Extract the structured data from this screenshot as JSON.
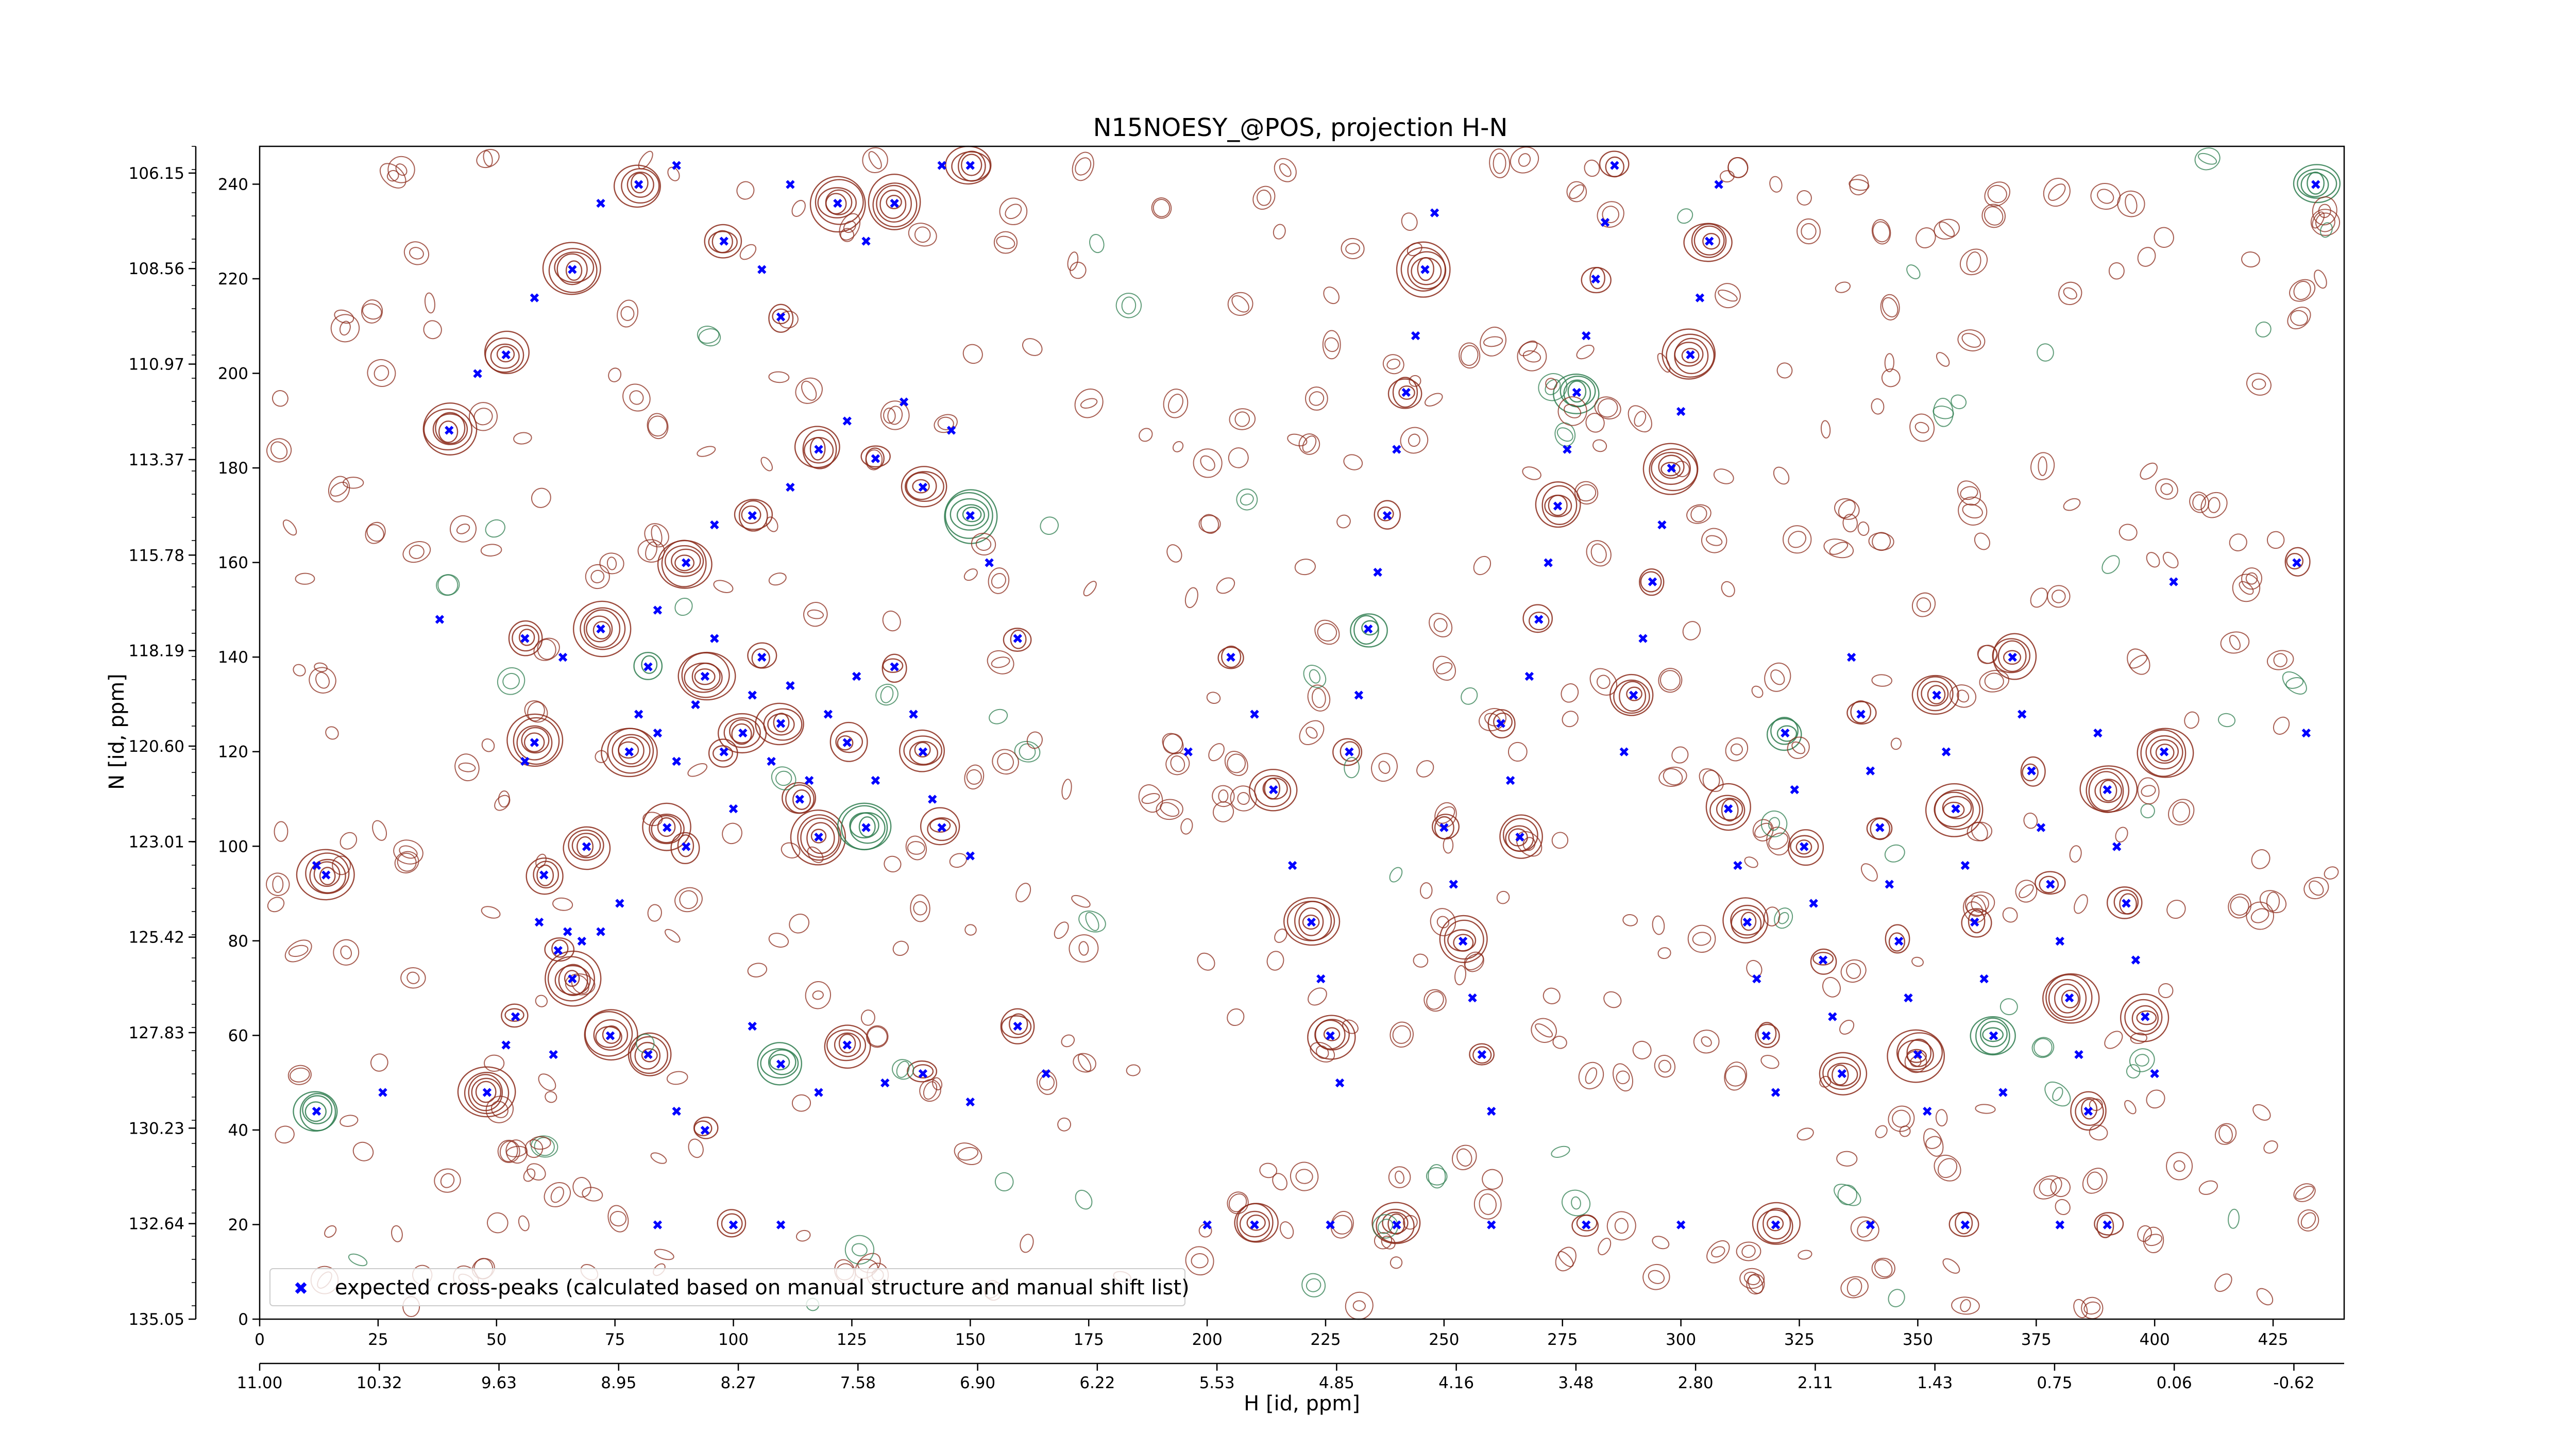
{
  "chart_data": {
    "type": "scatter",
    "title": "N15NOESY_@POS, projection H-N",
    "xlabel": "H [id, ppm]",
    "ylabel": "N [id, ppm]",
    "xlim": [
      0,
      440
    ],
    "ylim": [
      0,
      248
    ],
    "x_ticks": [
      "0",
      "25",
      "50",
      "75",
      "100",
      "125",
      "150",
      "175",
      "200",
      "225",
      "250",
      "275",
      "300",
      "325",
      "350",
      "375",
      "400",
      "425"
    ],
    "x_tick_values": [
      0,
      25,
      50,
      75,
      100,
      125,
      150,
      175,
      200,
      225,
      250,
      275,
      300,
      325,
      350,
      375,
      400,
      425
    ],
    "y_ticks": [
      "0",
      "20",
      "40",
      "60",
      "80",
      "100",
      "120",
      "140",
      "160",
      "180",
      "200",
      "220",
      "240"
    ],
    "y_tick_values": [
      0,
      20,
      40,
      60,
      80,
      100,
      120,
      140,
      160,
      180,
      200,
      220,
      240
    ],
    "x2_ticks": [
      "11.00",
      "10.32",
      "9.63",
      "8.95",
      "8.27",
      "7.58",
      "6.90",
      "6.22",
      "5.53",
      "4.85",
      "4.16",
      "3.48",
      "2.80",
      "2.11",
      "1.43",
      "0.75",
      "0.06",
      "-0.62"
    ],
    "y2_ticks": [
      "135.05",
      "132.64",
      "130.23",
      "127.83",
      "125.42",
      "123.01",
      "120.60",
      "118.19",
      "115.78",
      "113.37",
      "110.97",
      "108.56",
      "106.15"
    ],
    "grid": false,
    "legend": {
      "position": "bottom-left",
      "entries": [
        {
          "label": "expected cross-peaks (calculated based on manual structure and manual shift list)",
          "color": "#0000ff",
          "marker": "x"
        }
      ]
    },
    "colors": {
      "positive_contour": "#8b2a1a",
      "negative_contour": "#2e7d4f",
      "peak_marker": "#0000ff"
    },
    "series": [
      {
        "name": "expected cross-peaks (calculated based on manual structure and manual shift list)",
        "points": [
          [
            12,
            44
          ],
          [
            12,
            96
          ],
          [
            14,
            94
          ],
          [
            26,
            48
          ],
          [
            48,
            48
          ],
          [
            52,
            58
          ],
          [
            54,
            64
          ],
          [
            56,
            118
          ],
          [
            58,
            122
          ],
          [
            59,
            84
          ],
          [
            60,
            94
          ],
          [
            62,
            56
          ],
          [
            63,
            78
          ],
          [
            65,
            82
          ],
          [
            66,
            72
          ],
          [
            68,
            80
          ],
          [
            69,
            100
          ],
          [
            72,
            82
          ],
          [
            74,
            60
          ],
          [
            76,
            88
          ],
          [
            78,
            120
          ],
          [
            80,
            128
          ],
          [
            82,
            138
          ],
          [
            84,
            124
          ],
          [
            86,
            104
          ],
          [
            88,
            118
          ],
          [
            90,
            100
          ],
          [
            92,
            130
          ],
          [
            94,
            136
          ],
          [
            96,
            144
          ],
          [
            98,
            120
          ],
          [
            100,
            108
          ],
          [
            102,
            124
          ],
          [
            104,
            132
          ],
          [
            106,
            140
          ],
          [
            108,
            118
          ],
          [
            110,
            126
          ],
          [
            112,
            134
          ],
          [
            114,
            110
          ],
          [
            116,
            114
          ],
          [
            118,
            102
          ],
          [
            120,
            128
          ],
          [
            124,
            122
          ],
          [
            126,
            136
          ],
          [
            128,
            104
          ],
          [
            130,
            114
          ],
          [
            134,
            138
          ],
          [
            138,
            128
          ],
          [
            140,
            120
          ],
          [
            142,
            110
          ],
          [
            144,
            104
          ],
          [
            150,
            98
          ],
          [
            56,
            144
          ],
          [
            64,
            140
          ],
          [
            72,
            146
          ],
          [
            84,
            150
          ],
          [
            90,
            160
          ],
          [
            96,
            168
          ],
          [
            104,
            170
          ],
          [
            112,
            176
          ],
          [
            118,
            184
          ],
          [
            124,
            190
          ],
          [
            130,
            182
          ],
          [
            136,
            194
          ],
          [
            140,
            176
          ],
          [
            146,
            188
          ],
          [
            150,
            170
          ],
          [
            154,
            160
          ],
          [
            160,
            144
          ],
          [
            38,
            148
          ],
          [
            40,
            188
          ],
          [
            46,
            200
          ],
          [
            52,
            204
          ],
          [
            58,
            216
          ],
          [
            66,
            222
          ],
          [
            72,
            236
          ],
          [
            80,
            240
          ],
          [
            88,
            244
          ],
          [
            98,
            228
          ],
          [
            106,
            222
          ],
          [
            110,
            212
          ],
          [
            112,
            240
          ],
          [
            122,
            236
          ],
          [
            128,
            228
          ],
          [
            134,
            236
          ],
          [
            144,
            244
          ],
          [
            150,
            244
          ],
          [
            104,
            62
          ],
          [
            110,
            54
          ],
          [
            118,
            48
          ],
          [
            124,
            58
          ],
          [
            132,
            50
          ],
          [
            140,
            52
          ],
          [
            150,
            46
          ],
          [
            160,
            62
          ],
          [
            166,
            52
          ],
          [
            82,
            56
          ],
          [
            88,
            44
          ],
          [
            94,
            40
          ],
          [
            196,
            120
          ],
          [
            205,
            140
          ],
          [
            210,
            128
          ],
          [
            214,
            112
          ],
          [
            218,
            96
          ],
          [
            222,
            84
          ],
          [
            224,
            72
          ],
          [
            226,
            60
          ],
          [
            228,
            50
          ],
          [
            230,
            120
          ],
          [
            232,
            132
          ],
          [
            234,
            146
          ],
          [
            236,
            158
          ],
          [
            238,
            170
          ],
          [
            240,
            184
          ],
          [
            242,
            196
          ],
          [
            244,
            208
          ],
          [
            246,
            222
          ],
          [
            248,
            234
          ],
          [
            250,
            104
          ],
          [
            252,
            92
          ],
          [
            254,
            80
          ],
          [
            256,
            68
          ],
          [
            258,
            56
          ],
          [
            260,
            44
          ],
          [
            262,
            126
          ],
          [
            264,
            114
          ],
          [
            266,
            102
          ],
          [
            268,
            136
          ],
          [
            270,
            148
          ],
          [
            272,
            160
          ],
          [
            274,
            172
          ],
          [
            276,
            184
          ],
          [
            278,
            196
          ],
          [
            280,
            208
          ],
          [
            282,
            220
          ],
          [
            284,
            232
          ],
          [
            286,
            244
          ],
          [
            288,
            120
          ],
          [
            290,
            132
          ],
          [
            292,
            144
          ],
          [
            294,
            156
          ],
          [
            296,
            168
          ],
          [
            298,
            180
          ],
          [
            300,
            192
          ],
          [
            302,
            204
          ],
          [
            304,
            216
          ],
          [
            306,
            228
          ],
          [
            308,
            240
          ],
          [
            310,
            108
          ],
          [
            312,
            96
          ],
          [
            314,
            84
          ],
          [
            316,
            72
          ],
          [
            318,
            60
          ],
          [
            320,
            48
          ],
          [
            322,
            124
          ],
          [
            324,
            112
          ],
          [
            326,
            100
          ],
          [
            328,
            88
          ],
          [
            330,
            76
          ],
          [
            332,
            64
          ],
          [
            334,
            52
          ],
          [
            336,
            140
          ],
          [
            338,
            128
          ],
          [
            340,
            116
          ],
          [
            342,
            104
          ],
          [
            344,
            92
          ],
          [
            346,
            80
          ],
          [
            348,
            68
          ],
          [
            350,
            56
          ],
          [
            352,
            44
          ],
          [
            354,
            132
          ],
          [
            356,
            120
          ],
          [
            358,
            108
          ],
          [
            360,
            96
          ],
          [
            362,
            84
          ],
          [
            364,
            72
          ],
          [
            366,
            60
          ],
          [
            368,
            48
          ],
          [
            370,
            140
          ],
          [
            372,
            128
          ],
          [
            374,
            116
          ],
          [
            376,
            104
          ],
          [
            378,
            92
          ],
          [
            380,
            80
          ],
          [
            382,
            68
          ],
          [
            384,
            56
          ],
          [
            386,
            44
          ],
          [
            388,
            124
          ],
          [
            390,
            112
          ],
          [
            392,
            100
          ],
          [
            394,
            88
          ],
          [
            396,
            76
          ],
          [
            398,
            64
          ],
          [
            400,
            52
          ],
          [
            402,
            120
          ],
          [
            404,
            156
          ],
          [
            430,
            160
          ],
          [
            432,
            124
          ],
          [
            434,
            240
          ],
          [
            300,
            20
          ],
          [
            320,
            20
          ],
          [
            340,
            20
          ],
          [
            360,
            20
          ],
          [
            380,
            20
          ],
          [
            390,
            20
          ],
          [
            226,
            20
          ],
          [
            240,
            20
          ],
          [
            260,
            20
          ],
          [
            280,
            20
          ],
          [
            200,
            20
          ],
          [
            210,
            20
          ],
          [
            84,
            20
          ],
          [
            100,
            20
          ],
          [
            110,
            20
          ]
        ]
      }
    ]
  }
}
